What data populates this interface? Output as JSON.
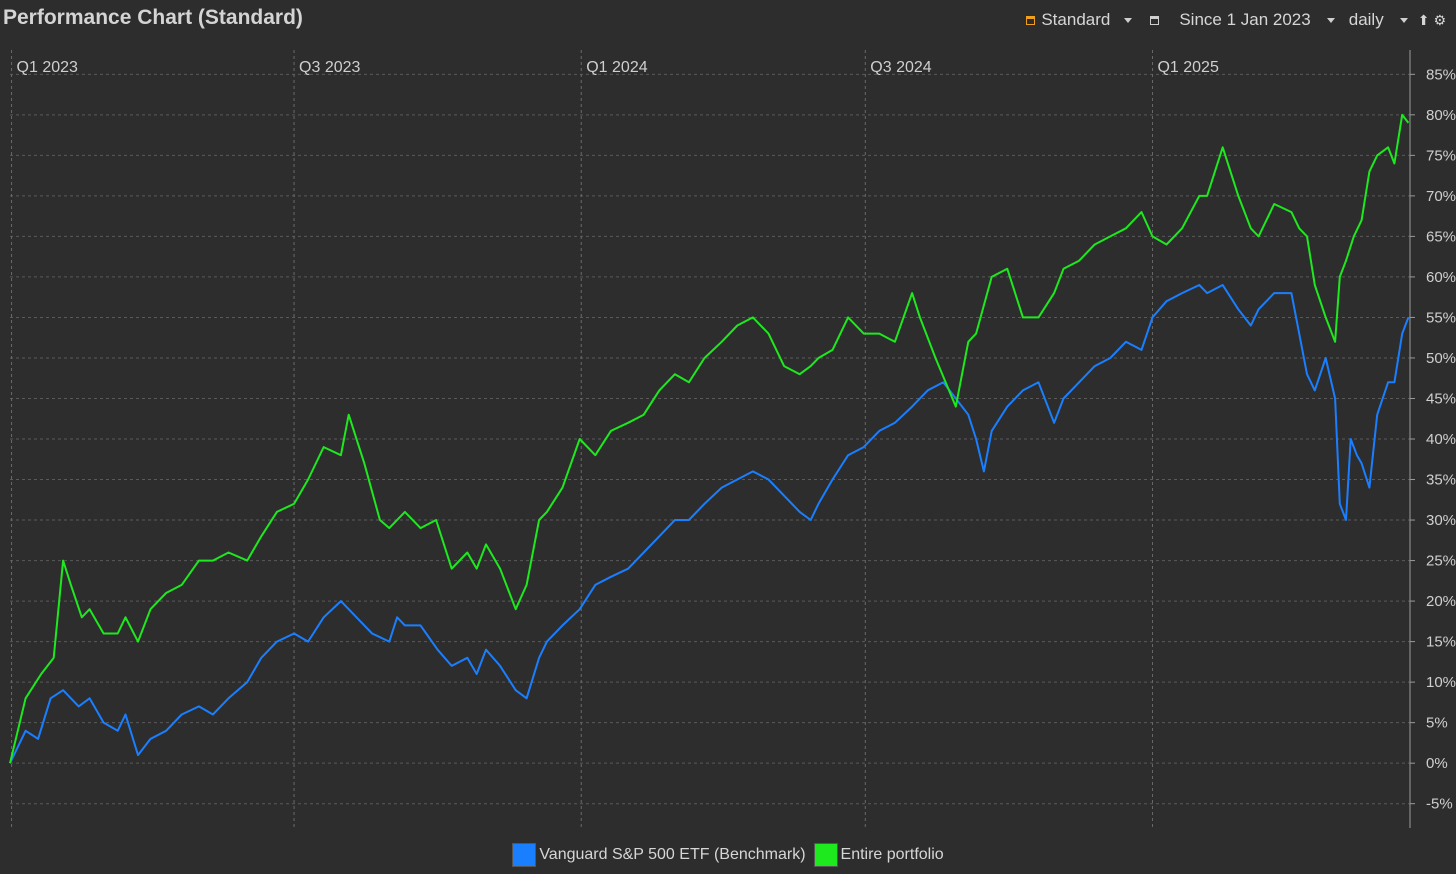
{
  "header": {
    "title": "Performance Chart (Standard)",
    "view_label": "Standard",
    "period_label": "Since 1 Jan 2023",
    "interval_label": "daily"
  },
  "icons": [
    "chart-view-icon",
    "calendar-icon",
    "chevron-down-icon",
    "export-icon",
    "gear-icon"
  ],
  "chart_data": {
    "type": "line",
    "x_tick_labels": [
      "Q1 2023",
      "Q3 2023",
      "Q1 2024",
      "Q3 2024",
      "Q1 2025"
    ],
    "x_ticks": [
      "2023-01-01",
      "2023-07-01",
      "2024-01-01",
      "2024-07-01",
      "2025-01-01"
    ],
    "x_range": [
      "2022-12-31",
      "2025-06-15"
    ],
    "ylim": [
      -8,
      88
    ],
    "y_ticks": [
      -5,
      0,
      5,
      10,
      15,
      20,
      25,
      30,
      35,
      40,
      45,
      50,
      55,
      60,
      65,
      70,
      75,
      80,
      85
    ],
    "y_unit": "%",
    "grid": true,
    "legend_position": "bottom-center",
    "series": [
      {
        "name": "Vanguard S&P 500 ETF (Benchmark)",
        "color": "#1a7fff",
        "points": [
          [
            "2022-12-31",
            0
          ],
          [
            "2023-01-10",
            4
          ],
          [
            "2023-01-18",
            3
          ],
          [
            "2023-01-26",
            8
          ],
          [
            "2023-02-03",
            9
          ],
          [
            "2023-02-13",
            7
          ],
          [
            "2023-02-20",
            8
          ],
          [
            "2023-03-01",
            5
          ],
          [
            "2023-03-10",
            4
          ],
          [
            "2023-03-15",
            6
          ],
          [
            "2023-03-23",
            1
          ],
          [
            "2023-03-31",
            3
          ],
          [
            "2023-04-10",
            4
          ],
          [
            "2023-04-20",
            6
          ],
          [
            "2023-05-01",
            7
          ],
          [
            "2023-05-10",
            6
          ],
          [
            "2023-05-20",
            8
          ],
          [
            "2023-06-01",
            10
          ],
          [
            "2023-06-10",
            13
          ],
          [
            "2023-06-20",
            15
          ],
          [
            "2023-07-01",
            16
          ],
          [
            "2023-07-10",
            15
          ],
          [
            "2023-07-20",
            18
          ],
          [
            "2023-07-31",
            20
          ],
          [
            "2023-08-10",
            18
          ],
          [
            "2023-08-20",
            16
          ],
          [
            "2023-08-31",
            15
          ],
          [
            "2023-09-05",
            18
          ],
          [
            "2023-09-10",
            17
          ],
          [
            "2023-09-20",
            17
          ],
          [
            "2023-10-01",
            14
          ],
          [
            "2023-10-10",
            12
          ],
          [
            "2023-10-20",
            13
          ],
          [
            "2023-10-26",
            11
          ],
          [
            "2023-11-01",
            14
          ],
          [
            "2023-11-10",
            12
          ],
          [
            "2023-11-20",
            9
          ],
          [
            "2023-11-27",
            8
          ],
          [
            "2023-12-05",
            13
          ],
          [
            "2023-12-10",
            15
          ],
          [
            "2023-12-20",
            17
          ],
          [
            "2023-12-31",
            19
          ],
          [
            "2024-01-10",
            22
          ],
          [
            "2024-01-20",
            23
          ],
          [
            "2024-01-31",
            24
          ],
          [
            "2024-02-10",
            26
          ],
          [
            "2024-02-20",
            28
          ],
          [
            "2024-03-01",
            30
          ],
          [
            "2024-03-10",
            30
          ],
          [
            "2024-03-20",
            32
          ],
          [
            "2024-03-31",
            34
          ],
          [
            "2024-04-10",
            35
          ],
          [
            "2024-04-20",
            36
          ],
          [
            "2024-04-30",
            35
          ],
          [
            "2024-05-10",
            33
          ],
          [
            "2024-05-20",
            31
          ],
          [
            "2024-05-27",
            30
          ],
          [
            "2024-06-01",
            32
          ],
          [
            "2024-06-10",
            35
          ],
          [
            "2024-06-20",
            38
          ],
          [
            "2024-06-30",
            39
          ],
          [
            "2024-07-10",
            41
          ],
          [
            "2024-07-20",
            42
          ],
          [
            "2024-07-31",
            44
          ],
          [
            "2024-08-10",
            46
          ],
          [
            "2024-08-20",
            47
          ],
          [
            "2024-08-28",
            45
          ],
          [
            "2024-09-05",
            43
          ],
          [
            "2024-09-10",
            40
          ],
          [
            "2024-09-15",
            36
          ],
          [
            "2024-09-20",
            41
          ],
          [
            "2024-09-30",
            44
          ],
          [
            "2024-10-10",
            46
          ],
          [
            "2024-10-20",
            47
          ],
          [
            "2024-10-30",
            42
          ],
          [
            "2024-11-05",
            45
          ],
          [
            "2024-11-15",
            47
          ],
          [
            "2024-11-25",
            49
          ],
          [
            "2024-12-05",
            50
          ],
          [
            "2024-12-15",
            52
          ],
          [
            "2024-12-25",
            51
          ],
          [
            "2025-01-01",
            55
          ],
          [
            "2025-01-10",
            57
          ],
          [
            "2025-01-20",
            58
          ],
          [
            "2025-01-31",
            59
          ],
          [
            "2025-02-05",
            58
          ],
          [
            "2025-02-15",
            59
          ],
          [
            "2025-02-25",
            56
          ],
          [
            "2025-03-05",
            54
          ],
          [
            "2025-03-10",
            56
          ],
          [
            "2025-03-20",
            58
          ],
          [
            "2025-03-31",
            58
          ],
          [
            "2025-04-05",
            53
          ],
          [
            "2025-04-10",
            48
          ],
          [
            "2025-04-15",
            46
          ],
          [
            "2025-04-22",
            50
          ],
          [
            "2025-04-28",
            45
          ],
          [
            "2025-05-01",
            32
          ],
          [
            "2025-05-05",
            30
          ],
          [
            "2025-05-08",
            40
          ],
          [
            "2025-05-12",
            38
          ],
          [
            "2025-05-15",
            37
          ],
          [
            "2025-05-20",
            34
          ],
          [
            "2025-05-25",
            43
          ],
          [
            "2025-06-01",
            47
          ],
          [
            "2025-06-05",
            47
          ],
          [
            "2025-06-10",
            53
          ],
          [
            "2025-06-14",
            55
          ]
        ]
      },
      {
        "name": "Entire portfolio",
        "color": "#1ee81e",
        "points": [
          [
            "2022-12-31",
            0
          ],
          [
            "2023-01-10",
            8
          ],
          [
            "2023-01-20",
            11
          ],
          [
            "2023-01-28",
            13
          ],
          [
            "2023-02-03",
            25
          ],
          [
            "2023-02-08",
            22
          ],
          [
            "2023-02-15",
            18
          ],
          [
            "2023-02-20",
            19
          ],
          [
            "2023-03-01",
            16
          ],
          [
            "2023-03-10",
            16
          ],
          [
            "2023-03-15",
            18
          ],
          [
            "2023-03-23",
            15
          ],
          [
            "2023-03-31",
            19
          ],
          [
            "2023-04-10",
            21
          ],
          [
            "2023-04-20",
            22
          ],
          [
            "2023-05-01",
            25
          ],
          [
            "2023-05-10",
            25
          ],
          [
            "2023-05-20",
            26
          ],
          [
            "2023-06-01",
            25
          ],
          [
            "2023-06-10",
            28
          ],
          [
            "2023-06-20",
            31
          ],
          [
            "2023-07-01",
            32
          ],
          [
            "2023-07-10",
            35
          ],
          [
            "2023-07-20",
            39
          ],
          [
            "2023-07-31",
            38
          ],
          [
            "2023-08-05",
            43
          ],
          [
            "2023-08-15",
            37
          ],
          [
            "2023-08-25",
            30
          ],
          [
            "2023-08-31",
            29
          ],
          [
            "2023-09-10",
            31
          ],
          [
            "2023-09-20",
            29
          ],
          [
            "2023-09-30",
            30
          ],
          [
            "2023-10-10",
            24
          ],
          [
            "2023-10-20",
            26
          ],
          [
            "2023-10-26",
            24
          ],
          [
            "2023-11-01",
            27
          ],
          [
            "2023-11-10",
            24
          ],
          [
            "2023-11-20",
            19
          ],
          [
            "2023-11-27",
            22
          ],
          [
            "2023-12-05",
            30
          ],
          [
            "2023-12-10",
            31
          ],
          [
            "2023-12-20",
            34
          ],
          [
            "2023-12-31",
            40
          ],
          [
            "2024-01-10",
            38
          ],
          [
            "2024-01-20",
            41
          ],
          [
            "2024-01-31",
            42
          ],
          [
            "2024-02-10",
            43
          ],
          [
            "2024-02-20",
            46
          ],
          [
            "2024-03-01",
            48
          ],
          [
            "2024-03-10",
            47
          ],
          [
            "2024-03-20",
            50
          ],
          [
            "2024-03-31",
            52
          ],
          [
            "2024-04-10",
            54
          ],
          [
            "2024-04-20",
            55
          ],
          [
            "2024-04-30",
            53
          ],
          [
            "2024-05-10",
            49
          ],
          [
            "2024-05-20",
            48
          ],
          [
            "2024-05-27",
            49
          ],
          [
            "2024-06-01",
            50
          ],
          [
            "2024-06-10",
            51
          ],
          [
            "2024-06-20",
            55
          ],
          [
            "2024-06-30",
            53
          ],
          [
            "2024-07-10",
            53
          ],
          [
            "2024-07-20",
            52
          ],
          [
            "2024-07-31",
            58
          ],
          [
            "2024-08-05",
            55
          ],
          [
            "2024-08-15",
            50
          ],
          [
            "2024-08-28",
            44
          ],
          [
            "2024-09-05",
            52
          ],
          [
            "2024-09-10",
            53
          ],
          [
            "2024-09-20",
            60
          ],
          [
            "2024-09-30",
            61
          ],
          [
            "2024-10-10",
            55
          ],
          [
            "2024-10-20",
            55
          ],
          [
            "2024-10-30",
            58
          ],
          [
            "2024-11-05",
            61
          ],
          [
            "2024-11-15",
            62
          ],
          [
            "2024-11-25",
            64
          ],
          [
            "2024-12-05",
            65
          ],
          [
            "2024-12-15",
            66
          ],
          [
            "2024-12-25",
            68
          ],
          [
            "2025-01-01",
            65
          ],
          [
            "2025-01-10",
            64
          ],
          [
            "2025-01-20",
            66
          ],
          [
            "2025-01-31",
            70
          ],
          [
            "2025-02-05",
            70
          ],
          [
            "2025-02-15",
            76
          ],
          [
            "2025-02-25",
            70
          ],
          [
            "2025-03-05",
            66
          ],
          [
            "2025-03-10",
            65
          ],
          [
            "2025-03-20",
            69
          ],
          [
            "2025-03-31",
            68
          ],
          [
            "2025-04-05",
            66
          ],
          [
            "2025-04-10",
            65
          ],
          [
            "2025-04-15",
            59
          ],
          [
            "2025-04-22",
            55
          ],
          [
            "2025-04-28",
            52
          ],
          [
            "2025-05-01",
            60
          ],
          [
            "2025-05-05",
            62
          ],
          [
            "2025-05-10",
            65
          ],
          [
            "2025-05-15",
            67
          ],
          [
            "2025-05-20",
            73
          ],
          [
            "2025-05-25",
            75
          ],
          [
            "2025-06-01",
            76
          ],
          [
            "2025-06-05",
            74
          ],
          [
            "2025-06-10",
            80
          ],
          [
            "2025-06-14",
            79
          ]
        ]
      }
    ]
  }
}
